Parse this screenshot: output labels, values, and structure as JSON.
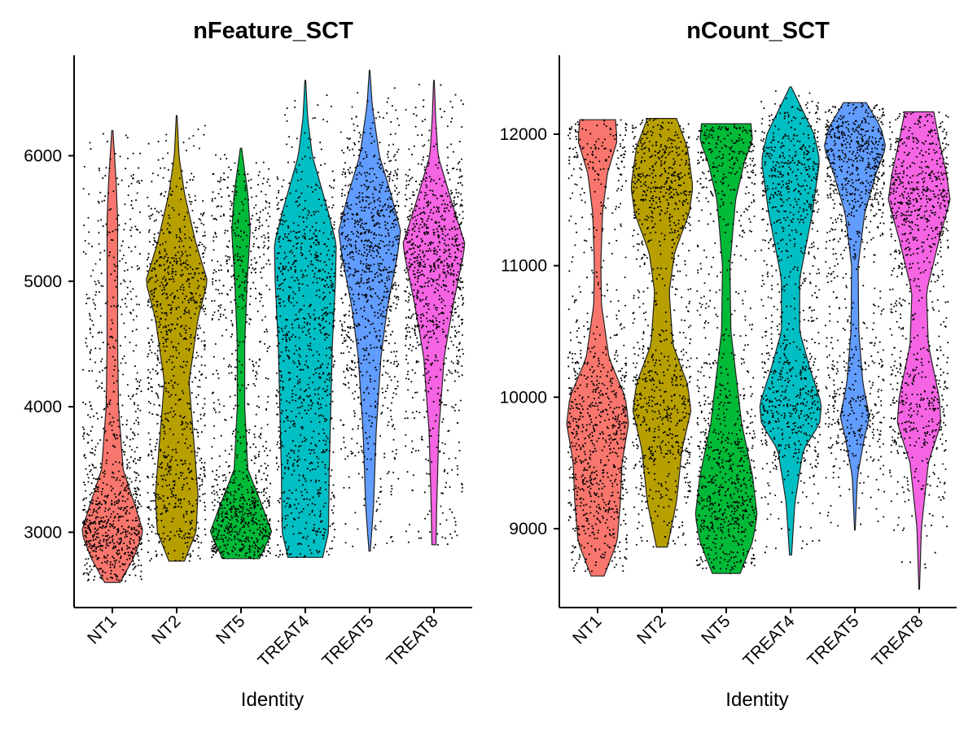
{
  "chart_data": [
    {
      "type": "violin",
      "title": "nFeature_SCT",
      "xlabel": "Identity",
      "ylabel": "",
      "ylim": [
        2400,
        6800
      ],
      "yticks": [
        3000,
        4000,
        5000,
        6000
      ],
      "categories": [
        "NT1",
        "NT2",
        "NT5",
        "TREAT4",
        "TREAT5",
        "TREAT8"
      ],
      "colors": [
        "#F8766D",
        "#B79F00",
        "#00BA38",
        "#00BFC4",
        "#619CFF",
        "#F564E3"
      ],
      "groups": [
        {
          "name": "NT1",
          "min": 2600,
          "max": 6200,
          "density": [
            [
              2600,
              0.25
            ],
            [
              2800,
              0.7
            ],
            [
              3000,
              1.0
            ],
            [
              3200,
              0.75
            ],
            [
              3500,
              0.35
            ],
            [
              4000,
              0.2
            ],
            [
              4500,
              0.17
            ],
            [
              5000,
              0.17
            ],
            [
              5500,
              0.17
            ],
            [
              5800,
              0.12
            ],
            [
              6200,
              0.02
            ]
          ]
        },
        {
          "name": "NT2",
          "min": 2770,
          "max": 6320,
          "density": [
            [
              2770,
              0.2
            ],
            [
              3000,
              0.5
            ],
            [
              3300,
              0.55
            ],
            [
              3700,
              0.45
            ],
            [
              4200,
              0.32
            ],
            [
              4700,
              0.55
            ],
            [
              5000,
              0.8
            ],
            [
              5300,
              0.5
            ],
            [
              5700,
              0.2
            ],
            [
              6000,
              0.06
            ],
            [
              6320,
              0.01
            ]
          ]
        },
        {
          "name": "NT5",
          "min": 2790,
          "max": 6060,
          "density": [
            [
              2790,
              0.6
            ],
            [
              3000,
              1.0
            ],
            [
              3200,
              0.7
            ],
            [
              3500,
              0.22
            ],
            [
              4000,
              0.12
            ],
            [
              4500,
              0.12
            ],
            [
              5000,
              0.2
            ],
            [
              5400,
              0.3
            ],
            [
              5700,
              0.22
            ],
            [
              6060,
              0.02
            ]
          ]
        },
        {
          "name": "TREAT4",
          "min": 2800,
          "max": 6600,
          "density": [
            [
              2800,
              0.45
            ],
            [
              3000,
              0.6
            ],
            [
              3500,
              0.62
            ],
            [
              4000,
              0.66
            ],
            [
              4500,
              0.7
            ],
            [
              5000,
              0.78
            ],
            [
              5300,
              0.8
            ],
            [
              5600,
              0.55
            ],
            [
              6000,
              0.18
            ],
            [
              6300,
              0.06
            ],
            [
              6600,
              0.01
            ]
          ]
        },
        {
          "name": "TREAT5",
          "min": 2850,
          "max": 6680,
          "density": [
            [
              2850,
              0.02
            ],
            [
              3200,
              0.12
            ],
            [
              3800,
              0.2
            ],
            [
              4400,
              0.35
            ],
            [
              4800,
              0.55
            ],
            [
              5200,
              0.85
            ],
            [
              5400,
              0.95
            ],
            [
              5700,
              0.65
            ],
            [
              6000,
              0.3
            ],
            [
              6400,
              0.08
            ],
            [
              6680,
              0.01
            ]
          ]
        },
        {
          "name": "TREAT8",
          "min": 2900,
          "max": 6600,
          "density": [
            [
              2900,
              0.06
            ],
            [
              3200,
              0.08
            ],
            [
              3800,
              0.14
            ],
            [
              4400,
              0.3
            ],
            [
              4800,
              0.55
            ],
            [
              5200,
              0.85
            ],
            [
              5300,
              0.9
            ],
            [
              5600,
              0.55
            ],
            [
              6000,
              0.12
            ],
            [
              6300,
              0.05
            ],
            [
              6600,
              0.01
            ]
          ]
        }
      ]
    },
    {
      "type": "violin",
      "title": "nCount_SCT",
      "xlabel": "Identity",
      "ylabel": "",
      "ylim": [
        8400,
        12600
      ],
      "yticks": [
        9000,
        10000,
        11000,
        12000
      ],
      "categories": [
        "NT1",
        "NT2",
        "NT5",
        "TREAT4",
        "TREAT5",
        "TREAT8"
      ],
      "colors": [
        "#F8766D",
        "#B79F00",
        "#00BA38",
        "#00BFC4",
        "#619CFF",
        "#F564E3"
      ],
      "groups": [
        {
          "name": "NT1",
          "min": 8640,
          "max": 12110,
          "density": [
            [
              8640,
              0.2
            ],
            [
              8900,
              0.6
            ],
            [
              9200,
              0.7
            ],
            [
              9500,
              0.75
            ],
            [
              9800,
              0.95
            ],
            [
              10000,
              0.85
            ],
            [
              10300,
              0.35
            ],
            [
              10700,
              0.12
            ],
            [
              11000,
              0.1
            ],
            [
              11400,
              0.15
            ],
            [
              11700,
              0.3
            ],
            [
              11950,
              0.6
            ],
            [
              12110,
              0.55
            ]
          ]
        },
        {
          "name": "NT2",
          "min": 8860,
          "max": 12120,
          "density": [
            [
              8860,
              0.15
            ],
            [
              9200,
              0.4
            ],
            [
              9600,
              0.55
            ],
            [
              9900,
              0.8
            ],
            [
              10100,
              0.7
            ],
            [
              10400,
              0.3
            ],
            [
              10800,
              0.2
            ],
            [
              11100,
              0.35
            ],
            [
              11400,
              0.75
            ],
            [
              11600,
              0.85
            ],
            [
              11900,
              0.7
            ],
            [
              12120,
              0.4
            ]
          ]
        },
        {
          "name": "NT5",
          "min": 8660,
          "max": 12080,
          "density": [
            [
              8660,
              0.45
            ],
            [
              8900,
              0.85
            ],
            [
              9100,
              1.0
            ],
            [
              9400,
              0.85
            ],
            [
              9800,
              0.5
            ],
            [
              10100,
              0.35
            ],
            [
              10500,
              0.15
            ],
            [
              11000,
              0.12
            ],
            [
              11500,
              0.3
            ],
            [
              11800,
              0.6
            ],
            [
              11950,
              0.85
            ],
            [
              12080,
              0.8
            ]
          ]
        },
        {
          "name": "TREAT4",
          "min": 8800,
          "max": 12360,
          "density": [
            [
              8800,
              0.03
            ],
            [
              9200,
              0.12
            ],
            [
              9600,
              0.35
            ],
            [
              9800,
              0.8
            ],
            [
              9950,
              0.85
            ],
            [
              10200,
              0.55
            ],
            [
              10500,
              0.25
            ],
            [
              10900,
              0.25
            ],
            [
              11400,
              0.6
            ],
            [
              11800,
              0.8
            ],
            [
              12000,
              0.65
            ],
            [
              12200,
              0.3
            ],
            [
              12360,
              0.02
            ]
          ]
        },
        {
          "name": "TREAT5",
          "min": 8990,
          "max": 12240,
          "density": [
            [
              8990,
              0.01
            ],
            [
              9400,
              0.08
            ],
            [
              9700,
              0.3
            ],
            [
              9850,
              0.45
            ],
            [
              10100,
              0.25
            ],
            [
              10500,
              0.12
            ],
            [
              11000,
              0.1
            ],
            [
              11400,
              0.3
            ],
            [
              11700,
              0.65
            ],
            [
              11900,
              0.95
            ],
            [
              12050,
              0.8
            ],
            [
              12240,
              0.35
            ]
          ]
        },
        {
          "name": "TREAT8",
          "min": 8540,
          "max": 12170,
          "density": [
            [
              8540,
              0.01
            ],
            [
              9000,
              0.06
            ],
            [
              9500,
              0.25
            ],
            [
              9800,
              0.6
            ],
            [
              10000,
              0.55
            ],
            [
              10400,
              0.25
            ],
            [
              10800,
              0.2
            ],
            [
              11200,
              0.55
            ],
            [
              11500,
              0.85
            ],
            [
              11700,
              0.75
            ],
            [
              11950,
              0.55
            ],
            [
              12170,
              0.4
            ]
          ]
        }
      ]
    }
  ]
}
